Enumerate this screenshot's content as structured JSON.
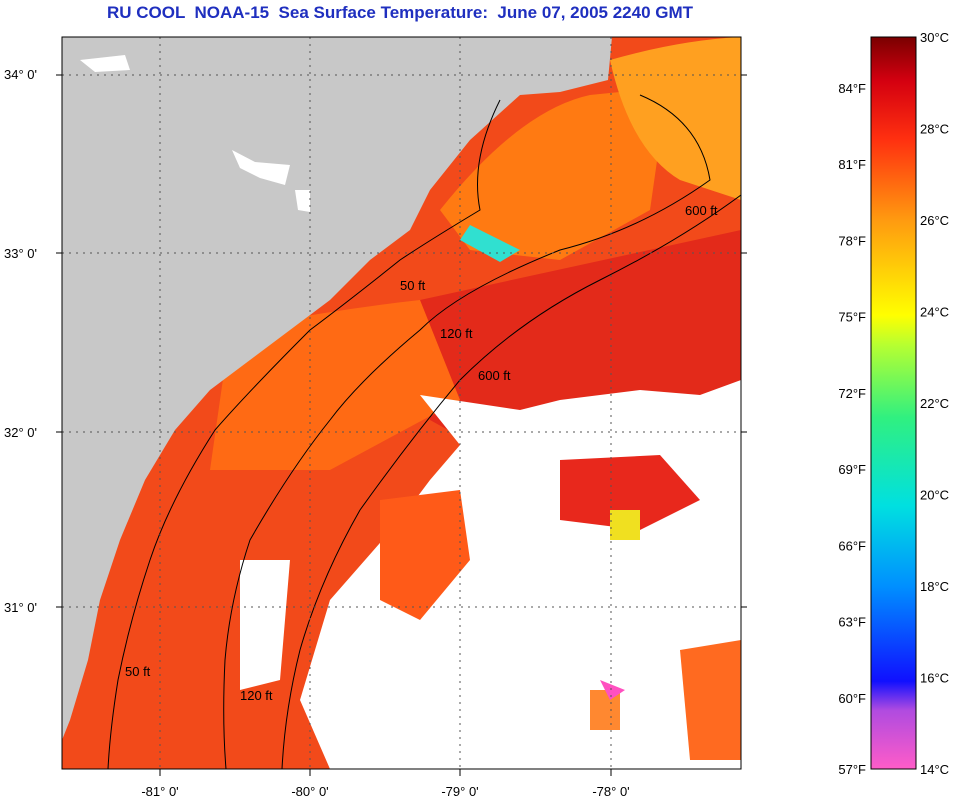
{
  "title": "RU COOL  NOAA-15  Sea Surface Temperature:  June 07, 2005 2240 GMT",
  "map": {
    "lat_labels": [
      "34° 0'",
      "33° 0'",
      "32° 0'",
      "31° 0'"
    ],
    "lon_labels": [
      "-81° 0'",
      "-80° 0'",
      "-79° 0'",
      "-78° 0'"
    ],
    "contour_labels": [
      "50 ft",
      "120 ft",
      "600 ft"
    ],
    "colors": {
      "land": "#c8c8c8",
      "cloud": "#ffffff",
      "sst_warm": "#f24a1a",
      "sst_mid": "#ff7a12",
      "sst_hot": "#e8281c",
      "contour": "#000000"
    }
  },
  "colorbar": {
    "fahrenheit_labels": [
      "84°F",
      "81°F",
      "78°F",
      "75°F",
      "72°F",
      "69°F",
      "66°F",
      "63°F",
      "60°F",
      "57°F"
    ],
    "celsius_labels": [
      "30°C",
      "28°C",
      "26°C",
      "24°C",
      "22°C",
      "20°C",
      "18°C",
      "16°C",
      "14°C"
    ],
    "celsius_range": [
      14,
      30
    ]
  }
}
